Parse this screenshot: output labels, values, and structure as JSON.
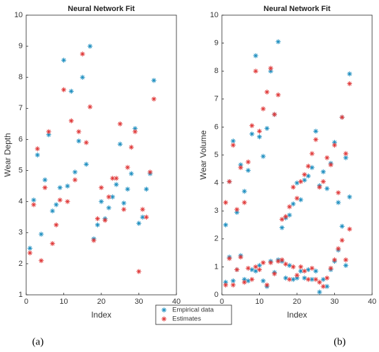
{
  "chart_data": [
    {
      "type": "scatter",
      "title": "Neural Network Fit",
      "x_label": "Index",
      "y_label": "Wear Depth",
      "panel_label": "(a)",
      "x": [
        1,
        2,
        3,
        4,
        5,
        6,
        7,
        8,
        9,
        10,
        11,
        12,
        13,
        14,
        15,
        16,
        17,
        18,
        19,
        20,
        21,
        22,
        23,
        24,
        25,
        26,
        27,
        28,
        29,
        30,
        31,
        32,
        33,
        34
      ],
      "series": [
        {
          "name": "Empirical data",
          "color": "#1f8fc0",
          "values": [
            2.5,
            4.05,
            5.5,
            2.95,
            4.7,
            6.15,
            3.7,
            3.9,
            4.45,
            8.55,
            4.5,
            7.55,
            4.95,
            5.95,
            8.0,
            5.2,
            9.0,
            2.8,
            3.25,
            4.0,
            3.45,
            3.8,
            4.15,
            4.55,
            5.85,
            3.95,
            4.4,
            4.9,
            6.35,
            3.3,
            3.5,
            4.4,
            4.9,
            7.9
          ]
        },
        {
          "name": "Estimates",
          "color": "#e03a3a",
          "values": [
            2.35,
            3.9,
            5.7,
            2.1,
            4.45,
            6.25,
            2.65,
            3.25,
            4.05,
            7.6,
            4.0,
            6.6,
            4.7,
            6.25,
            8.75,
            5.9,
            7.05,
            2.75,
            3.45,
            4.45,
            3.4,
            4.15,
            4.75,
            4.75,
            6.5,
            3.75,
            5.1,
            5.75,
            6.25,
            1.75,
            3.75,
            3.5,
            4.95,
            7.3
          ]
        }
      ],
      "xlim": [
        0,
        40
      ],
      "xticks": [
        0,
        10,
        20,
        30,
        40
      ],
      "ylim": [
        1,
        10
      ],
      "yticks": [
        1,
        2,
        3,
        4,
        5,
        6,
        7,
        8,
        9,
        10
      ]
    },
    {
      "type": "scatter",
      "title": "Neural Network Fit",
      "x_label": "Index",
      "y_label": "Wear Volume",
      "panel_label": "(b)",
      "x": [
        1,
        2,
        3,
        4,
        5,
        6,
        7,
        8,
        9,
        10,
        11,
        12,
        13,
        14,
        15,
        16,
        17,
        18,
        19,
        20,
        21,
        22,
        23,
        24,
        25,
        26,
        27,
        28,
        29,
        30,
        31,
        32,
        33,
        34,
        1,
        2,
        3,
        4,
        5,
        6,
        7,
        8,
        9,
        10,
        11,
        12,
        13,
        14,
        15,
        16,
        17,
        18,
        19,
        20,
        21,
        22,
        23,
        24,
        25,
        26,
        27,
        28,
        29,
        30,
        31,
        32,
        33,
        34
      ],
      "series": [
        {
          "color": "#1f8fc0",
          "values": [
            2.5,
            4.05,
            5.5,
            2.95,
            4.65,
            3.7,
            4.45,
            5.75,
            8.55,
            5.65,
            4.95,
            5.95,
            8.0,
            6.45,
            9.05,
            2.4,
            2.75,
            2.85,
            3.25,
            4.0,
            3.4,
            4.1,
            4.25,
            4.55,
            5.85,
            3.9,
            4.4,
            3.8,
            4.7,
            5.45,
            3.3,
            6.35,
            4.9,
            7.9,
            0.45,
            1.35,
            0.5,
            0.9,
            1.4,
            0.55,
            0.5,
            0.9,
            0.85,
            1.05,
            0.5,
            0.3,
            1.2,
            0.8,
            1.25,
            1.2,
            0.6,
            1.05,
            0.55,
            0.6,
            0.85,
            0.6,
            0.9,
            0.55,
            0.85,
            0.1,
            0.55,
            0.3,
            0.9,
            1.2,
            1.6,
            2.45,
            1.05,
            3.5
          ]
        },
        {
          "color": "#e03a3a",
          "values": [
            3.3,
            4.05,
            5.35,
            3.05,
            4.55,
            3.3,
            4.75,
            6.05,
            8.0,
            5.85,
            6.65,
            7.25,
            8.1,
            6.45,
            7.15,
            2.7,
            2.8,
            3.15,
            3.85,
            3.45,
            4.05,
            4.3,
            4.6,
            5.05,
            5.55,
            3.85,
            4.05,
            4.9,
            4.65,
            5.35,
            3.65,
            6.35,
            5.05,
            7.55,
            0.35,
            1.3,
            0.35,
            0.9,
            1.35,
            0.45,
            0.95,
            0.55,
            1.0,
            0.9,
            1.15,
            0.35,
            1.15,
            0.75,
            1.2,
            1.25,
            1.1,
            0.55,
            1.0,
            0.7,
            1.0,
            0.85,
            0.55,
            0.95,
            0.55,
            0.45,
            0.3,
            0.6,
            0.95,
            1.25,
            1.65,
            1.95,
            1.25,
            2.35
          ]
        }
      ],
      "xlim": [
        0,
        40
      ],
      "xticks": [
        0,
        10,
        20,
        30,
        40
      ],
      "ylim": [
        0,
        10
      ],
      "yticks": [
        0,
        1,
        2,
        3,
        4,
        5,
        6,
        7,
        8,
        9,
        10
      ]
    }
  ]
}
